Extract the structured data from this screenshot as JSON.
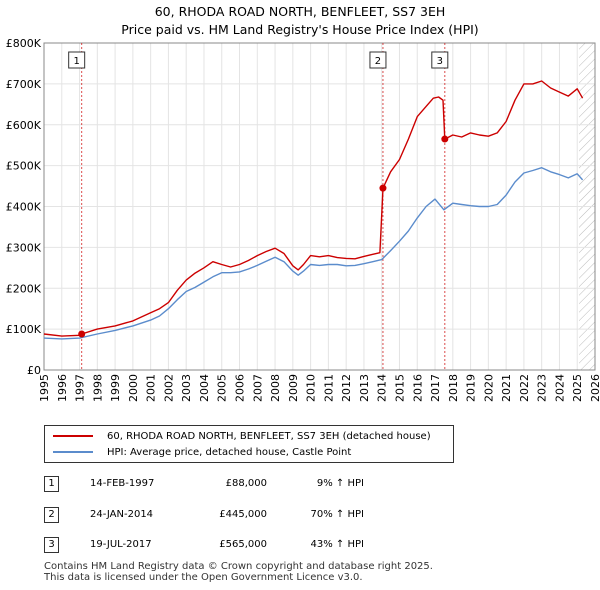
{
  "title_line1": "60, RHODA ROAD NORTH, BENFLEET, SS7 3EH",
  "title_line2": "Price paid vs. HM Land Registry's House Price Index (HPI)",
  "chart_data": {
    "type": "line",
    "title": "60, RHODA ROAD NORTH, BENFLEET, SS7 3EH — Price paid vs. HM Land Registry's House Price Index (HPI)",
    "xlabel": "",
    "ylabel": "",
    "xlim": [
      1995,
      2026
    ],
    "ylim": [
      0,
      800000
    ],
    "x_ticks": [
      1995,
      1996,
      1997,
      1998,
      1999,
      2000,
      2001,
      2002,
      2003,
      2004,
      2005,
      2006,
      2007,
      2008,
      2009,
      2010,
      2011,
      2012,
      2013,
      2014,
      2015,
      2016,
      2017,
      2018,
      2019,
      2020,
      2021,
      2022,
      2023,
      2024,
      2025,
      2026
    ],
    "y_ticks": [
      0,
      100000,
      200000,
      300000,
      400000,
      500000,
      600000,
      700000,
      800000
    ],
    "y_tick_labels": [
      "£0",
      "£100K",
      "£200K",
      "£300K",
      "£400K",
      "£500K",
      "£600K",
      "£700K",
      "£800K"
    ],
    "grid": true,
    "hatched_region_start": 2025.1,
    "series": [
      {
        "name": "60, RHODA ROAD NORTH, BENFLEET, SS7 3EH (detached house)",
        "color": "#cc0000",
        "x": [
          1995.0,
          1996.0,
          1997.0,
          1997.12,
          1998.0,
          1999.0,
          2000.0,
          2001.0,
          2001.5,
          2002.0,
          2002.5,
          2003.0,
          2003.5,
          2004.0,
          2004.5,
          2005.0,
          2005.5,
          2006.0,
          2006.5,
          2007.0,
          2007.5,
          2008.0,
          2008.5,
          2009.0,
          2009.3,
          2009.6,
          2010.0,
          2010.5,
          2011.0,
          2011.5,
          2012.0,
          2012.5,
          2013.0,
          2013.5,
          2013.9,
          2014.07,
          2014.5,
          2015.0,
          2015.5,
          2016.0,
          2016.5,
          2016.9,
          2017.2,
          2017.45,
          2017.55,
          2018.0,
          2018.5,
          2019.0,
          2019.5,
          2020.0,
          2020.5,
          2021.0,
          2021.5,
          2022.0,
          2022.5,
          2023.0,
          2023.5,
          2024.0,
          2024.5,
          2025.0,
          2025.3
        ],
        "values": [
          88000,
          83000,
          85000,
          88000,
          100000,
          108000,
          120000,
          140000,
          150000,
          165000,
          195000,
          220000,
          237000,
          250000,
          265000,
          258000,
          252000,
          258000,
          268000,
          280000,
          290000,
          298000,
          285000,
          255000,
          245000,
          258000,
          280000,
          277000,
          280000,
          275000,
          273000,
          272000,
          278000,
          283000,
          287000,
          445000,
          485000,
          515000,
          565000,
          620000,
          645000,
          665000,
          668000,
          660000,
          565000,
          575000,
          570000,
          580000,
          575000,
          572000,
          580000,
          608000,
          660000,
          700000,
          700000,
          707000,
          690000,
          680000,
          670000,
          688000,
          665000
        ]
      },
      {
        "name": "HPI: Average price, detached house, Castle Point",
        "color": "#5b8ccc",
        "x": [
          1995.0,
          1996.0,
          1997.0,
          1998.0,
          1999.0,
          2000.0,
          2001.0,
          2001.5,
          2002.0,
          2002.5,
          2003.0,
          2003.5,
          2004.0,
          2004.5,
          2005.0,
          2005.5,
          2006.0,
          2006.5,
          2007.0,
          2007.5,
          2008.0,
          2008.5,
          2009.0,
          2009.3,
          2009.6,
          2010.0,
          2010.5,
          2011.0,
          2011.5,
          2012.0,
          2012.5,
          2013.0,
          2013.5,
          2014.0,
          2014.5,
          2015.0,
          2015.5,
          2016.0,
          2016.5,
          2017.0,
          2017.5,
          2018.0,
          2018.5,
          2019.0,
          2019.5,
          2020.0,
          2020.5,
          2021.0,
          2021.5,
          2022.0,
          2022.5,
          2023.0,
          2023.5,
          2024.0,
          2024.5,
          2025.0,
          2025.3
        ],
        "values": [
          78000,
          76000,
          78000,
          88000,
          97000,
          108000,
          122000,
          132000,
          150000,
          172000,
          192000,
          202000,
          215000,
          228000,
          238000,
          238000,
          240000,
          247000,
          256000,
          266000,
          276000,
          265000,
          242000,
          232000,
          242000,
          258000,
          256000,
          258000,
          258000,
          255000,
          256000,
          260000,
          265000,
          270000,
          292000,
          315000,
          340000,
          372000,
          400000,
          418000,
          392000,
          408000,
          405000,
          402000,
          400000,
          400000,
          405000,
          428000,
          460000,
          482000,
          488000,
          495000,
          485000,
          478000,
          470000,
          480000,
          465000
        ]
      }
    ],
    "sale_markers": [
      {
        "label": "1",
        "x": 1997.12,
        "value": 88000
      },
      {
        "label": "2",
        "x": 2014.07,
        "value": 445000
      },
      {
        "label": "3",
        "x": 2017.55,
        "value": 565000
      }
    ]
  },
  "legend": {
    "property_label": "60, RHODA ROAD NORTH, BENFLEET, SS7 3EH (detached house)",
    "hpi_label": "HPI: Average price, detached house, Castle Point"
  },
  "sales": [
    {
      "num": "1",
      "date": "14-FEB-1997",
      "price": "£88,000",
      "hpi": "9% ↑ HPI"
    },
    {
      "num": "2",
      "date": "24-JAN-2014",
      "price": "£445,000",
      "hpi": "70% ↑ HPI"
    },
    {
      "num": "3",
      "date": "19-JUL-2017",
      "price": "£565,000",
      "hpi": "43% ↑ HPI"
    }
  ],
  "footer": {
    "line1": "Contains HM Land Registry data © Crown copyright and database right 2025.",
    "line2": "This data is licensed under the Open Government Licence v3.0."
  }
}
